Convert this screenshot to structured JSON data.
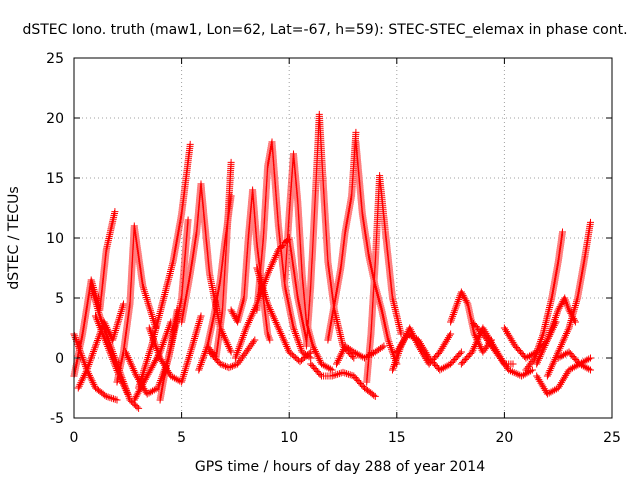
{
  "chart_data": {
    "type": "scatter",
    "title": "dSTEC Iono. truth (maw1, Lon=62, Lat=-67, h=59): STEC-STEC_elemax in phase cont.",
    "xlabel": "GPS time / hours of day 288 of year 2014",
    "ylabel": "dSTEC  / TECUs",
    "xlim": [
      0,
      25
    ],
    "ylim": [
      -5,
      25
    ],
    "xticks": [
      0,
      5,
      10,
      15,
      20,
      25
    ],
    "yticks": [
      -5,
      0,
      5,
      10,
      15,
      20,
      25
    ],
    "grid": true,
    "marker": "+",
    "color": "#ff0000",
    "tracks": [
      {
        "x": [
          0.0,
          0.4,
          0.8,
          1.2,
          1.5,
          1.9
        ],
        "y": [
          -1.5,
          2.0,
          6.5,
          4.0,
          9.0,
          12.2
        ]
      },
      {
        "x": [
          0.0,
          0.3,
          0.6,
          1.0,
          1.5,
          2.0
        ],
        "y": [
          2.0,
          0.5,
          -1.0,
          -2.5,
          -3.2,
          -3.5
        ]
      },
      {
        "x": [
          0.2,
          0.6,
          1.0,
          1.4,
          1.8,
          2.3
        ],
        "y": [
          -2.5,
          -1.0,
          1.0,
          3.0,
          1.5,
          4.5
        ]
      },
      {
        "x": [
          0.8,
          1.2,
          1.7,
          2.2,
          2.6,
          3.0
        ],
        "y": [
          6.0,
          3.5,
          1.0,
          -1.5,
          -3.5,
          -4.2
        ]
      },
      {
        "x": [
          1.0,
          1.6,
          2.1,
          2.5
        ],
        "y": [
          3.5,
          0.8,
          -1.5,
          -3.0
        ]
      },
      {
        "x": [
          2.0,
          2.3,
          2.6,
          2.8,
          3.2,
          3.8
        ],
        "y": [
          -2.0,
          0.5,
          4.5,
          11.0,
          6.0,
          2.5
        ]
      },
      {
        "x": [
          2.4,
          2.9,
          3.4,
          3.9,
          4.4,
          5.0,
          5.3
        ],
        "y": [
          0.5,
          -1.5,
          -3.0,
          -2.5,
          0.0,
          5.0,
          11.5
        ]
      },
      {
        "x": [
          3.0,
          3.6,
          4.1,
          4.6,
          5.0,
          5.4
        ],
        "y": [
          -2.5,
          1.0,
          4.5,
          8.0,
          12.0,
          17.8
        ]
      },
      {
        "x": [
          2.8,
          3.4,
          4.0,
          4.5
        ],
        "y": [
          -3.5,
          -1.5,
          0.5,
          3.0
        ]
      },
      {
        "x": [
          3.5,
          4.0,
          4.5,
          5.0,
          5.5,
          5.9
        ],
        "y": [
          2.5,
          0.0,
          -1.5,
          -2.0,
          1.0,
          3.5
        ]
      },
      {
        "x": [
          4.0,
          4.2,
          4.5,
          4.8
        ],
        "y": [
          -3.5,
          -1.5,
          1.0,
          4.0
        ]
      },
      {
        "x": [
          5.0,
          5.4,
          5.7,
          5.9,
          6.3,
          6.8,
          7.3
        ],
        "y": [
          3.0,
          7.0,
          10.5,
          14.5,
          7.0,
          2.5,
          0.5
        ]
      },
      {
        "x": [
          5.8,
          6.2,
          6.5,
          6.8,
          7.0,
          7.3
        ],
        "y": [
          -1.0,
          1.0,
          3.5,
          6.5,
          9.5,
          13.5
        ]
      },
      {
        "x": [
          6.2,
          6.6,
          6.9,
          7.1,
          7.3
        ],
        "y": [
          1.0,
          0.0,
          4.0,
          10.0,
          16.3
        ]
      },
      {
        "x": [
          6.3,
          6.8,
          7.2,
          7.6,
          8.0,
          8.4
        ],
        "y": [
          0.5,
          -0.5,
          -0.8,
          -0.5,
          0.5,
          1.5
        ]
      },
      {
        "x": [
          7.3,
          7.6,
          7.9,
          8.1,
          8.3,
          8.5,
          8.8,
          9.0,
          9.1
        ],
        "y": [
          4.0,
          3.0,
          5.0,
          10.0,
          14.0,
          9.5,
          5.0,
          2.0,
          1.5
        ]
      },
      {
        "x": [
          7.5,
          8.0,
          8.5,
          9.0,
          9.5,
          10.0,
          10.4,
          10.8
        ],
        "y": [
          0.0,
          2.5,
          4.5,
          7.0,
          9.0,
          10.0,
          5.0,
          1.5
        ]
      },
      {
        "x": [
          8.5,
          8.8,
          9.0,
          9.2,
          9.5,
          9.8,
          10.2,
          10.6,
          11.0
        ],
        "y": [
          4.0,
          10.0,
          16.0,
          18.0,
          11.0,
          6.0,
          2.5,
          0.5,
          0.0
        ]
      },
      {
        "x": [
          8.5,
          9.0,
          9.5,
          10.0,
          10.5,
          11.0
        ],
        "y": [
          7.5,
          4.5,
          2.5,
          0.5,
          -0.3,
          0.5
        ]
      },
      {
        "x": [
          9.8,
          10.0,
          10.2,
          10.4,
          10.6,
          10.8,
          11.1,
          11.5,
          12.0
        ],
        "y": [
          6.5,
          12.0,
          17.0,
          13.0,
          7.0,
          3.0,
          1.0,
          -0.5,
          -1.0
        ]
      },
      {
        "x": [
          10.8,
          11.0,
          11.2,
          11.4,
          11.6,
          11.8,
          12.1,
          12.5,
          13.0
        ],
        "y": [
          1.0,
          6.0,
          13.0,
          20.3,
          14.0,
          8.0,
          4.0,
          1.0,
          0.0
        ]
      },
      {
        "x": [
          11.0,
          11.5,
          12.0,
          12.5,
          13.0,
          13.5,
          14.0
        ],
        "y": [
          -0.5,
          -1.5,
          -1.5,
          -1.2,
          -1.5,
          -2.5,
          -3.2
        ]
      },
      {
        "x": [
          11.8,
          12.1,
          12.4,
          12.6,
          12.9,
          13.1
        ],
        "y": [
          1.5,
          4.5,
          7.5,
          10.5,
          13.5,
          18.8
        ]
      },
      {
        "x": [
          13.1,
          13.4,
          13.7,
          14.0,
          14.3,
          14.6,
          15.0
        ],
        "y": [
          18.0,
          12.0,
          8.5,
          6.0,
          4.0,
          1.5,
          -0.5
        ]
      },
      {
        "x": [
          12.2,
          12.6,
          13.0,
          13.5,
          14.0,
          14.4
        ],
        "y": [
          -0.5,
          1.0,
          0.5,
          0.0,
          0.5,
          1.0
        ]
      },
      {
        "x": [
          13.6,
          13.8,
          14.0,
          14.2,
          14.5,
          14.8,
          15.2
        ],
        "y": [
          -2.0,
          2.0,
          8.0,
          15.2,
          10.0,
          5.0,
          2.0
        ]
      },
      {
        "x": [
          14.8,
          15.2,
          15.6,
          16.0,
          16.5,
          17.0,
          17.5
        ],
        "y": [
          -1.0,
          1.0,
          2.5,
          1.0,
          -0.5,
          0.5,
          2.0
        ]
      },
      {
        "x": [
          15.0,
          15.5,
          16.0,
          16.5,
          17.0,
          17.5,
          18.0
        ],
        "y": [
          0.5,
          2.0,
          1.5,
          0.0,
          -1.0,
          -0.5,
          0.5
        ]
      },
      {
        "x": [
          17.5,
          18.0,
          18.3,
          18.6,
          19.0,
          19.4
        ],
        "y": [
          3.0,
          5.5,
          4.5,
          2.0,
          0.5,
          1.5
        ]
      },
      {
        "x": [
          18.0,
          18.5,
          19.0,
          19.5,
          20.0,
          20.4
        ],
        "y": [
          -0.5,
          0.5,
          2.5,
          1.0,
          -0.5,
          -0.5
        ]
      },
      {
        "x": [
          18.5,
          19.0,
          19.6,
          20.2,
          20.8,
          21.3
        ],
        "y": [
          3.0,
          2.0,
          0.5,
          -1.0,
          -1.5,
          -1.0
        ]
      },
      {
        "x": [
          20.0,
          20.5,
          21.0,
          21.5,
          22.0,
          22.4
        ],
        "y": [
          2.5,
          1.0,
          0.0,
          0.5,
          1.5,
          3.0
        ]
      },
      {
        "x": [
          21.0,
          21.4,
          21.8,
          22.2,
          22.5,
          22.7
        ],
        "y": [
          -1.0,
          0.0,
          2.0,
          5.0,
          8.0,
          10.5
        ]
      },
      {
        "x": [
          21.5,
          22.0,
          22.5,
          22.8,
          23.0,
          23.3
        ],
        "y": [
          -0.5,
          1.5,
          4.0,
          5.0,
          4.0,
          3.0
        ]
      },
      {
        "x": [
          22.0,
          22.5,
          23.0,
          23.4,
          23.7,
          24.0
        ],
        "y": [
          -1.5,
          0.5,
          2.5,
          5.0,
          8.0,
          11.3
        ]
      },
      {
        "x": [
          21.5,
          22.0,
          22.5,
          23.0,
          23.5,
          24.0
        ],
        "y": [
          -1.5,
          -3.0,
          -2.5,
          -1.0,
          -0.5,
          -1.0
        ]
      },
      {
        "x": [
          22.5,
          23.0,
          23.5,
          24.0
        ],
        "y": [
          0.0,
          0.5,
          -0.5,
          0.0
        ]
      }
    ]
  }
}
